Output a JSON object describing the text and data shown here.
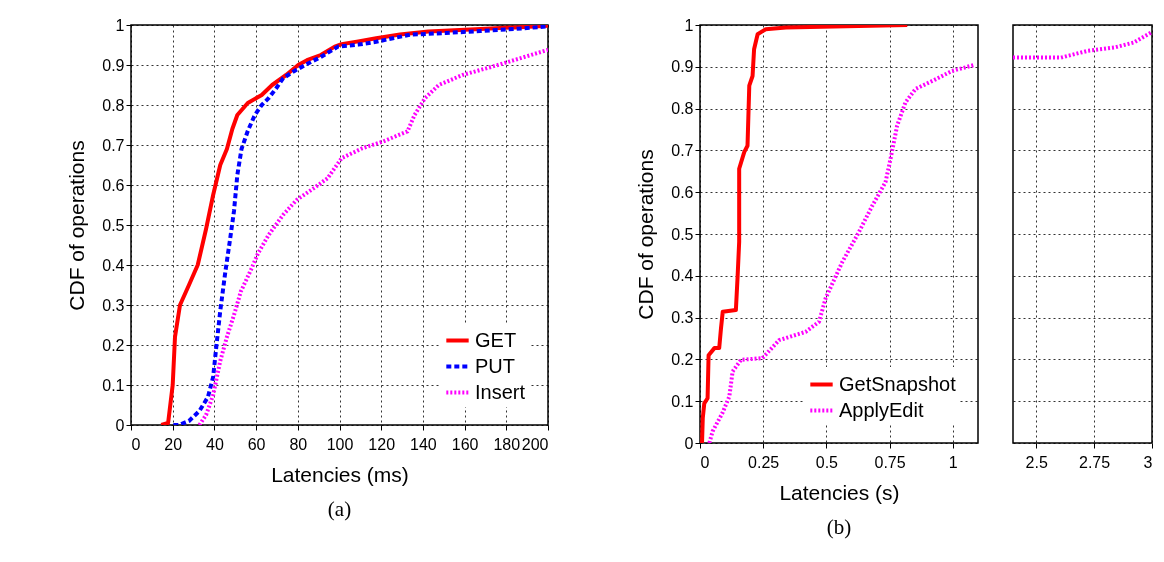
{
  "chart_data": [
    {
      "type": "line",
      "xlabel": "Latencies (ms)",
      "ylabel": "CDF of operations",
      "annotations": [
        "(a)"
      ],
      "xlim": [
        0,
        200
      ],
      "ylim": [
        0,
        1
      ],
      "xticks": [
        0,
        20,
        40,
        60,
        80,
        100,
        120,
        140,
        160,
        180,
        200
      ],
      "yticks": [
        0,
        0.1,
        0.2,
        0.3,
        0.4,
        0.5,
        0.6,
        0.7,
        0.8,
        0.9,
        1
      ],
      "grid": true,
      "legend": "bottom right",
      "series": [
        {
          "name": "GET",
          "color": "#ff0000",
          "line_style": "solid",
          "x": [
            14.5,
            17.8,
            20,
            21.1,
            23.5,
            27.8,
            32,
            36,
            39.4,
            42.8,
            46,
            48.6,
            51,
            56,
            62.7,
            67.7,
            74.4,
            80.2,
            84.4,
            91,
            97.7,
            101,
            109,
            117.6,
            129,
            142.6,
            167.6,
            184,
            200
          ],
          "values": [
            0,
            0.005,
            0.1,
            0.22,
            0.3,
            0.35,
            0.4,
            0.49,
            0.575,
            0.65,
            0.69,
            0.74,
            0.775,
            0.805,
            0.825,
            0.85,
            0.875,
            0.9,
            0.912,
            0.925,
            0.946,
            0.952,
            0.959,
            0.967,
            0.976,
            0.984,
            0.99,
            0.994,
            0.998
          ]
        },
        {
          "name": "PUT",
          "color": "#0000ff",
          "line_style": "dashed",
          "x": [
            20.3,
            22.8,
            27.8,
            32.8,
            36.9,
            39.4,
            41,
            42.8,
            45.3,
            47.4,
            49.4,
            51,
            53,
            56,
            59.4,
            62.7,
            66,
            69.4,
            73,
            78,
            83.5,
            91,
            99.3,
            109,
            117.6,
            134,
            151,
            167.6,
            184,
            199
          ],
          "values": [
            0,
            0,
            0.01,
            0.035,
            0.07,
            0.12,
            0.2,
            0.285,
            0.385,
            0.46,
            0.535,
            0.625,
            0.69,
            0.735,
            0.775,
            0.8,
            0.817,
            0.84,
            0.867,
            0.884,
            0.9,
            0.92,
            0.946,
            0.951,
            0.958,
            0.976,
            0.98,
            0.985,
            0.99,
            0.996
          ]
        },
        {
          "name": "Insert",
          "color": "#ff00ff",
          "line_style": "dotted",
          "x": [
            32.8,
            36,
            39.4,
            42.8,
            46,
            49.4,
            52.7,
            57.7,
            61,
            66,
            72.9,
            79.5,
            87.7,
            94.3,
            101,
            111,
            121,
            132.6,
            136,
            141,
            147.6,
            159,
            176,
            200
          ],
          "values": [
            0,
            0.025,
            0.075,
            0.16,
            0.22,
            0.275,
            0.334,
            0.39,
            0.43,
            0.475,
            0.525,
            0.563,
            0.592,
            0.617,
            0.667,
            0.692,
            0.709,
            0.734,
            0.775,
            0.817,
            0.85,
            0.875,
            0.9,
            0.938
          ]
        }
      ]
    },
    {
      "type": "line",
      "xlabel": "Latencies (s)",
      "ylabel": "CDF of operations",
      "annotations": [
        "(b)"
      ],
      "xlim": [
        0,
        1.1
      ],
      "ylim": [
        0,
        1
      ],
      "xticks": [
        0,
        0.25,
        0.5,
        0.75,
        1
      ],
      "yticks": [
        0,
        0.1,
        0.2,
        0.3,
        0.4,
        0.5,
        0.6,
        0.7,
        0.8,
        0.9,
        1
      ],
      "grid": true,
      "legend": "bottom right",
      "series": [
        {
          "name": "GetSnapshot",
          "color": "#ff0000",
          "line_style": "solid",
          "x": [
            0.008,
            0.011,
            0.017,
            0.03,
            0.034,
            0.057,
            0.076,
            0.083,
            0.09,
            0.142,
            0.149,
            0.155,
            0.155,
            0.175,
            0.188,
            0.195,
            0.208,
            0.214,
            0.228,
            0.26,
            0.34,
            0.82
          ],
          "values": [
            0,
            0.06,
            0.095,
            0.107,
            0.21,
            0.227,
            0.227,
            0.274,
            0.314,
            0.318,
            0.401,
            0.481,
            0.656,
            0.696,
            0.711,
            0.855,
            0.878,
            0.942,
            0.978,
            0.99,
            0.994,
            1
          ]
        },
        {
          "name": "ApplyEdit",
          "color": "#ff00ff",
          "line_style": "dotted",
          "x": [
            0.037,
            0.05,
            0.089,
            0.116,
            0.129,
            0.162,
            0.247,
            0.313,
            0.418,
            0.471,
            0.497,
            0.563,
            0.629,
            0.682,
            0.734,
            0.754,
            0.78,
            0.813,
            0.853,
            0.932,
            0.997,
            1.089
          ],
          "values": [
            0,
            0.028,
            0.072,
            0.111,
            0.171,
            0.199,
            0.203,
            0.246,
            0.266,
            0.29,
            0.346,
            0.433,
            0.505,
            0.568,
            0.624,
            0.68,
            0.759,
            0.815,
            0.847,
            0.87,
            0.89,
            0.905
          ]
        }
      ]
    },
    {
      "type": "line",
      "xlim": [
        2.4,
        3
      ],
      "ylim": [
        0,
        1
      ],
      "xticks": [
        2.5,
        2.75,
        3
      ],
      "yticks": [
        0,
        0.1,
        0.2,
        0.3,
        0.4,
        0.5,
        0.6,
        0.7,
        0.8,
        0.9,
        1
      ],
      "grid": true,
      "tick_labels": "x",
      "series": [
        {
          "color": "#ff00ff",
          "line_style": "dotted",
          "x": [
            2.4,
            2.607,
            2.721,
            2.836,
            2.921,
            2.997
          ],
          "values": [
            0.922,
            0.922,
            0.938,
            0.946,
            0.958,
            0.982
          ]
        }
      ]
    }
  ]
}
